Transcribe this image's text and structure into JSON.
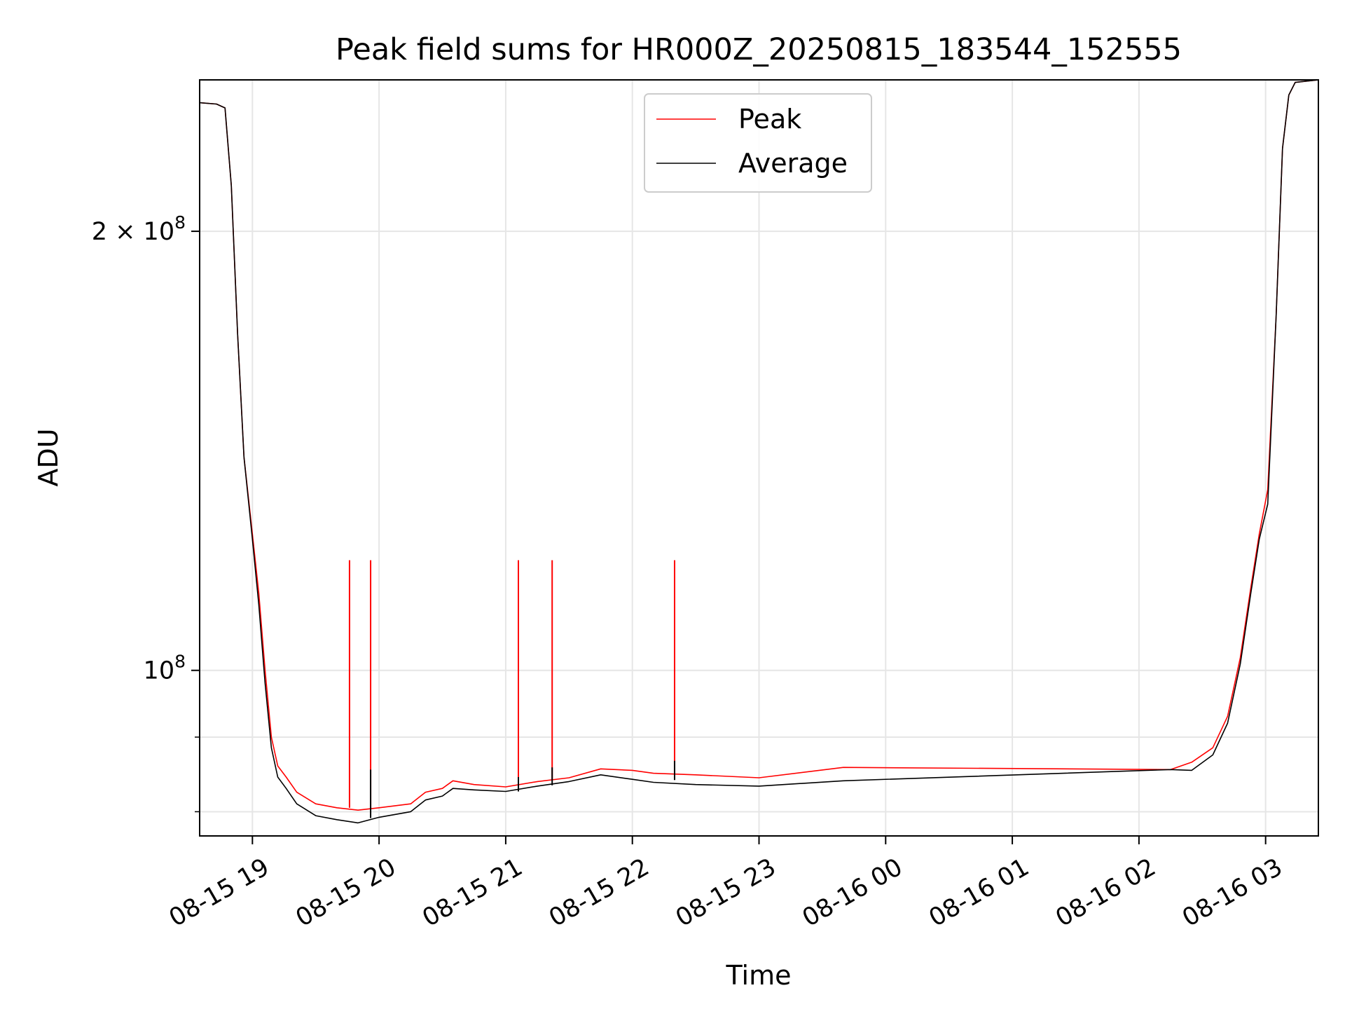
{
  "chart_data": {
    "type": "line",
    "title": "Peak field sums for HR000Z_20250815_183544_152555",
    "xlabel": "Time",
    "ylabel": "ADU",
    "y_scale": "log",
    "ylim": [
      77000000,
      254000000
    ],
    "xlim": [
      "2025-08-15 18:35",
      "2025-08-16 03:25"
    ],
    "x_ticks": [
      {
        "value": "2025-08-15 19:00",
        "label": "08-15 19"
      },
      {
        "value": "2025-08-15 20:00",
        "label": "08-15 20"
      },
      {
        "value": "2025-08-15 21:00",
        "label": "08-15 21"
      },
      {
        "value": "2025-08-15 22:00",
        "label": "08-15 22"
      },
      {
        "value": "2025-08-15 23:00",
        "label": "08-15 23"
      },
      {
        "value": "2025-08-16 00:00",
        "label": "08-16 00"
      },
      {
        "value": "2025-08-16 01:00",
        "label": "08-16 01"
      },
      {
        "value": "2025-08-16 02:00",
        "label": "08-16 02"
      },
      {
        "value": "2025-08-16 03:00",
        "label": "08-16 03"
      }
    ],
    "y_major_ticks": [
      {
        "value": 100000000,
        "base": "10",
        "exp": "8",
        "prefix": ""
      },
      {
        "value": 200000000,
        "base": "10",
        "exp": "8",
        "prefix": "2 × "
      }
    ],
    "y_minor_ticks": [
      80000000,
      90000000
    ],
    "grid": true,
    "legend_position": "upper-center",
    "series": [
      {
        "name": "Peak",
        "color": "#ff0000",
        "points": [
          [
            "2025-08-15 18:35",
            245000000
          ],
          [
            "2025-08-15 18:43",
            244500000
          ],
          [
            "2025-08-15 18:47",
            243000000
          ],
          [
            "2025-08-15 18:50",
            215000000
          ],
          [
            "2025-08-15 18:53",
            170000000
          ],
          [
            "2025-08-15 18:56",
            140000000
          ],
          [
            "2025-08-15 19:00",
            124000000
          ],
          [
            "2025-08-15 19:03",
            113000000
          ],
          [
            "2025-08-15 19:06",
            100000000
          ],
          [
            "2025-08-15 19:09",
            90000000
          ],
          [
            "2025-08-15 19:12",
            86000000
          ],
          [
            "2025-08-15 19:16",
            84500000
          ],
          [
            "2025-08-15 19:21",
            82500000
          ],
          [
            "2025-08-15 19:30",
            81000000
          ],
          [
            "2025-08-15 19:40",
            80500000
          ],
          [
            "2025-08-15 19:50",
            80200000
          ],
          [
            "2025-08-15 20:00",
            80500000
          ],
          [
            "2025-08-15 20:15",
            81000000
          ],
          [
            "2025-08-15 20:22",
            82500000
          ],
          [
            "2025-08-15 20:30",
            83000000
          ],
          [
            "2025-08-15 20:35",
            84000000
          ],
          [
            "2025-08-15 20:45",
            83500000
          ],
          [
            "2025-08-15 21:00",
            83200000
          ],
          [
            "2025-08-15 21:15",
            83900000
          ],
          [
            "2025-08-15 21:30",
            84400000
          ],
          [
            "2025-08-15 21:45",
            85600000
          ],
          [
            "2025-08-15 22:00",
            85400000
          ],
          [
            "2025-08-15 22:10",
            85000000
          ],
          [
            "2025-08-15 22:30",
            84800000
          ],
          [
            "2025-08-15 23:00",
            84400000
          ],
          [
            "2025-08-15 23:40",
            85800000
          ],
          [
            "2025-08-16 02:15",
            85500000
          ],
          [
            "2025-08-16 02:25",
            86500000
          ],
          [
            "2025-08-16 02:35",
            88500000
          ],
          [
            "2025-08-16 02:42",
            93000000
          ],
          [
            "2025-08-16 02:48",
            102000000
          ],
          [
            "2025-08-16 02:53",
            114000000
          ],
          [
            "2025-08-16 02:57",
            124000000
          ],
          [
            "2025-08-16 03:01",
            133000000
          ],
          [
            "2025-08-16 03:05",
            175000000
          ],
          [
            "2025-08-16 03:08",
            228000000
          ],
          [
            "2025-08-16 03:11",
            248000000
          ],
          [
            "2025-08-16 03:14",
            253000000
          ],
          [
            "2025-08-16 03:25",
            254000000
          ]
        ],
        "spikes": [
          {
            "time": "2025-08-15 19:46",
            "base": 80500000,
            "top": 119000000
          },
          {
            "time": "2025-08-15 19:56",
            "base": 80300000,
            "top": 119000000
          },
          {
            "time": "2025-08-15 21:06",
            "base": 83300000,
            "top": 119000000
          },
          {
            "time": "2025-08-15 21:22",
            "base": 84100000,
            "top": 119000000
          },
          {
            "time": "2025-08-15 22:20",
            "base": 85100000,
            "top": 119000000
          }
        ]
      },
      {
        "name": "Average",
        "color": "#000000",
        "points": [
          [
            "2025-08-15 18:35",
            245000000
          ],
          [
            "2025-08-15 18:43",
            244500000
          ],
          [
            "2025-08-15 18:47",
            243000000
          ],
          [
            "2025-08-15 18:50",
            215000000
          ],
          [
            "2025-08-15 18:53",
            170000000
          ],
          [
            "2025-08-15 18:56",
            140000000
          ],
          [
            "2025-08-15 19:00",
            123000000
          ],
          [
            "2025-08-15 19:03",
            111000000
          ],
          [
            "2025-08-15 19:06",
            98000000
          ],
          [
            "2025-08-15 19:09",
            88500000
          ],
          [
            "2025-08-15 19:12",
            84500000
          ],
          [
            "2025-08-15 19:16",
            83000000
          ],
          [
            "2025-08-15 19:21",
            81000000
          ],
          [
            "2025-08-15 19:30",
            79500000
          ],
          [
            "2025-08-15 19:40",
            79000000
          ],
          [
            "2025-08-15 19:50",
            78600000
          ],
          [
            "2025-08-15 20:00",
            79300000
          ],
          [
            "2025-08-15 20:15",
            80000000
          ],
          [
            "2025-08-15 20:22",
            81500000
          ],
          [
            "2025-08-15 20:30",
            82000000
          ],
          [
            "2025-08-15 20:35",
            83000000
          ],
          [
            "2025-08-15 20:45",
            82800000
          ],
          [
            "2025-08-15 21:00",
            82600000
          ],
          [
            "2025-08-15 21:15",
            83300000
          ],
          [
            "2025-08-15 21:30",
            83900000
          ],
          [
            "2025-08-15 21:45",
            84800000
          ],
          [
            "2025-08-15 22:00",
            84200000
          ],
          [
            "2025-08-15 22:10",
            83800000
          ],
          [
            "2025-08-15 22:30",
            83500000
          ],
          [
            "2025-08-15 23:00",
            83300000
          ],
          [
            "2025-08-15 23:40",
            84000000
          ],
          [
            "2025-08-16 02:15",
            85500000
          ],
          [
            "2025-08-16 02:25",
            85400000
          ],
          [
            "2025-08-16 02:35",
            87500000
          ],
          [
            "2025-08-16 02:42",
            92000000
          ],
          [
            "2025-08-16 02:48",
            101000000
          ],
          [
            "2025-08-16 02:53",
            113000000
          ],
          [
            "2025-08-16 02:57",
            123000000
          ],
          [
            "2025-08-16 03:01",
            130000000
          ],
          [
            "2025-08-16 03:05",
            175000000
          ],
          [
            "2025-08-16 03:08",
            228000000
          ],
          [
            "2025-08-16 03:11",
            248000000
          ],
          [
            "2025-08-16 03:14",
            253000000
          ],
          [
            "2025-08-16 03:25",
            254000000
          ]
        ],
        "spikes": [
          {
            "time": "2025-08-15 19:56",
            "base": 79200000,
            "top": 85500000
          },
          {
            "time": "2025-08-15 21:06",
            "base": 82600000,
            "top": 84500000
          },
          {
            "time": "2025-08-15 21:22",
            "base": 83400000,
            "top": 85800000
          },
          {
            "time": "2025-08-15 22:20",
            "base": 84100000,
            "top": 86700000
          }
        ]
      }
    ]
  }
}
